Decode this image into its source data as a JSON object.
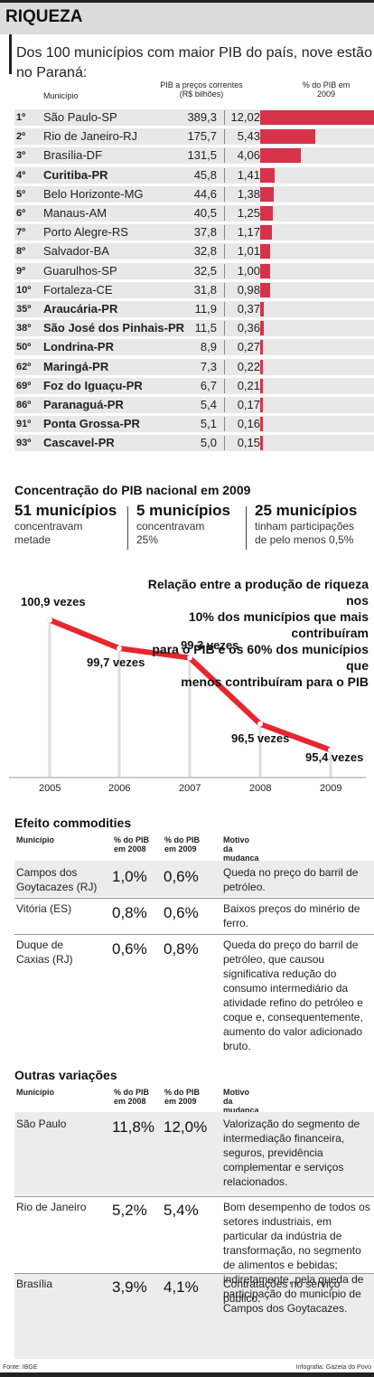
{
  "header": {
    "title": "RIQUEZA"
  },
  "intro": "Dos 100 municípios com maior PIB do país, nove estão no Paraná:",
  "table1": {
    "col_municipio": "Município",
    "col_pib": "PIB a preços correntes",
    "col_pib_unit": "(R$ bilhões)",
    "col_pct": "% do PIB em 2009",
    "rows": [
      {
        "rank": "1º",
        "name": "São Paulo-SP",
        "pib": "389,3",
        "pct": "12,02",
        "pct_value": 12.02,
        "pr": false
      },
      {
        "rank": "2º",
        "name": "Rio de Janeiro-RJ",
        "pib": "175,7",
        "pct": "5,43",
        "pct_value": 5.43,
        "pr": false
      },
      {
        "rank": "3º",
        "name": "Brasília-DF",
        "pib": "131,5",
        "pct": "4,06",
        "pct_value": 4.06,
        "pr": false
      },
      {
        "rank": "4º",
        "name": "Curitiba-PR",
        "pib": "45,8",
        "pct": "1,41",
        "pct_value": 1.41,
        "pr": true
      },
      {
        "rank": "5º",
        "name": "Belo Horizonte-MG",
        "pib": "44,6",
        "pct": "1,38",
        "pct_value": 1.38,
        "pr": false
      },
      {
        "rank": "6º",
        "name": "Manaus-AM",
        "pib": "40,5",
        "pct": "1,25",
        "pct_value": 1.25,
        "pr": false
      },
      {
        "rank": "7º",
        "name": "Porto Alegre-RS",
        "pib": "37,8",
        "pct": "1,17",
        "pct_value": 1.17,
        "pr": false
      },
      {
        "rank": "8º",
        "name": "Salvador-BA",
        "pib": "32,8",
        "pct": "1,01",
        "pct_value": 1.01,
        "pr": false
      },
      {
        "rank": "9º",
        "name": "Guarulhos-SP",
        "pib": "32,5",
        "pct": "1,00",
        "pct_value": 1.0,
        "pr": false
      },
      {
        "rank": "10º",
        "name": "Fortaleza-CE",
        "pib": "31,8",
        "pct": "0,98",
        "pct_value": 0.98,
        "pr": false
      },
      {
        "rank": "35º",
        "name": "Araucária-PR",
        "pib": "11,9",
        "pct": "0,37",
        "pct_value": 0.37,
        "pr": true
      },
      {
        "rank": "38º",
        "name": "São José dos Pinhais-PR",
        "pib": "11,5",
        "pct": "0,36",
        "pct_value": 0.36,
        "pr": true
      },
      {
        "rank": "50º",
        "name": "Londrina-PR",
        "pib": "8,9",
        "pct": "0,27",
        "pct_value": 0.27,
        "pr": true
      },
      {
        "rank": "62º",
        "name": "Maringá-PR",
        "pib": "7,3",
        "pct": "0,22",
        "pct_value": 0.22,
        "pr": true
      },
      {
        "rank": "69º",
        "name": "Foz do Iguaçu-PR",
        "pib": "6,7",
        "pct": "0,21",
        "pct_value": 0.21,
        "pr": true
      },
      {
        "rank": "86º",
        "name": "Paranaguá-PR",
        "pib": "5,4",
        "pct": "0,17",
        "pct_value": 0.17,
        "pr": true
      },
      {
        "rank": "91º",
        "name": "Ponta Grossa-PR",
        "pib": "5,1",
        "pct": "0,16",
        "pct_value": 0.16,
        "pr": true
      },
      {
        "rank": "93º",
        "name": "Cascavel-PR",
        "pib": "5,0",
        "pct": "0,15",
        "pct_value": 0.15,
        "pr": true
      }
    ]
  },
  "concentration": {
    "title": "Concentração do PIB nacional em 2009",
    "stats": [
      {
        "big": "51 municípios",
        "line1": "concentravam",
        "line2": "metade"
      },
      {
        "big": "5 municípios",
        "line1": "concentravam",
        "line2": "25%"
      },
      {
        "big": "25 municípios",
        "line1": "tinham participações",
        "line2": "de pelo menos 0,5%"
      }
    ]
  },
  "line_chart": {
    "title_lines": [
      "Relação entre a produção de riqueza nos",
      "10% dos municípios que mais contribuíram",
      "para o PIB e os 60% dos municípios que",
      "menos contribuíram para o PIB"
    ]
  },
  "chart_data": {
    "type": "line",
    "title": "Relação entre a produção de riqueza nos 10% dos municípios que mais contribuíram para o PIB e os 60% dos municípios que menos contribuíram para o PIB",
    "x": [
      "2005",
      "2006",
      "2007",
      "2008",
      "2009"
    ],
    "values": [
      100.9,
      99.7,
      99.3,
      96.5,
      95.4
    ],
    "labels": [
      "100,9 vezes",
      "99,7 vezes",
      "99,3 vezes",
      "96,5 vezes",
      "95,4 vezes"
    ],
    "color": "#e8262d",
    "grid": false
  },
  "commodities": {
    "title": "Efeito commodities",
    "col_municipio": "Município",
    "col_2008": "% do PIB em 2008",
    "col_2009": "% do PIB em 2009",
    "col_motivo": "Motivo da mudança",
    "rows": [
      {
        "name": "Campos dos Goytacazes (RJ)",
        "v2008": "1,0%",
        "v2009": "0,6%",
        "motivo": "Queda no preço do barril de petróleo."
      },
      {
        "name": "Vitória (ES)",
        "v2008": "0,8%",
        "v2009": "0,6%",
        "motivo": "Baixos preços do minério de ferro."
      },
      {
        "name": "Duque de Caxias (RJ)",
        "v2008": "0,6%",
        "v2009": "0,8%",
        "motivo": "Queda do preço do barril de petróleo, que causou significativa redução do consumo intermediário da atividade refino do petróleo e coque e, consequentemente, aumento do valor adicionado bruto."
      }
    ]
  },
  "outras": {
    "title": "Outras variações",
    "col_municipio": "Município",
    "col_2008": "% do PIB em 2008",
    "col_2009": "% do PIB em 2009",
    "col_motivo": "Motivo da mudança",
    "rows": [
      {
        "name": "São Paulo",
        "v2008": "11,8%",
        "v2009": "12,0%",
        "motivo": "Valorização do segmento de intermediação financeira, seguros, previdência complementar e serviços relacionados."
      },
      {
        "name": "Rio de Janeiro",
        "v2008": "5,2%",
        "v2009": "5,4%",
        "motivo": "Bom desempenho de todos os setores industriais, em particular da indústria de transformação, no segmento de alimentos e bebidas; indiretamente, pela queda de participação do município de Campos dos Goytacazes."
      },
      {
        "name": "Brasília",
        "v2008": "3,9%",
        "v2009": "4,1%",
        "motivo": "Contratações no serviço público."
      }
    ]
  },
  "footer": {
    "source": "Fonte: IBGE",
    "credit": "Infografia: Gazeta do Povo"
  }
}
